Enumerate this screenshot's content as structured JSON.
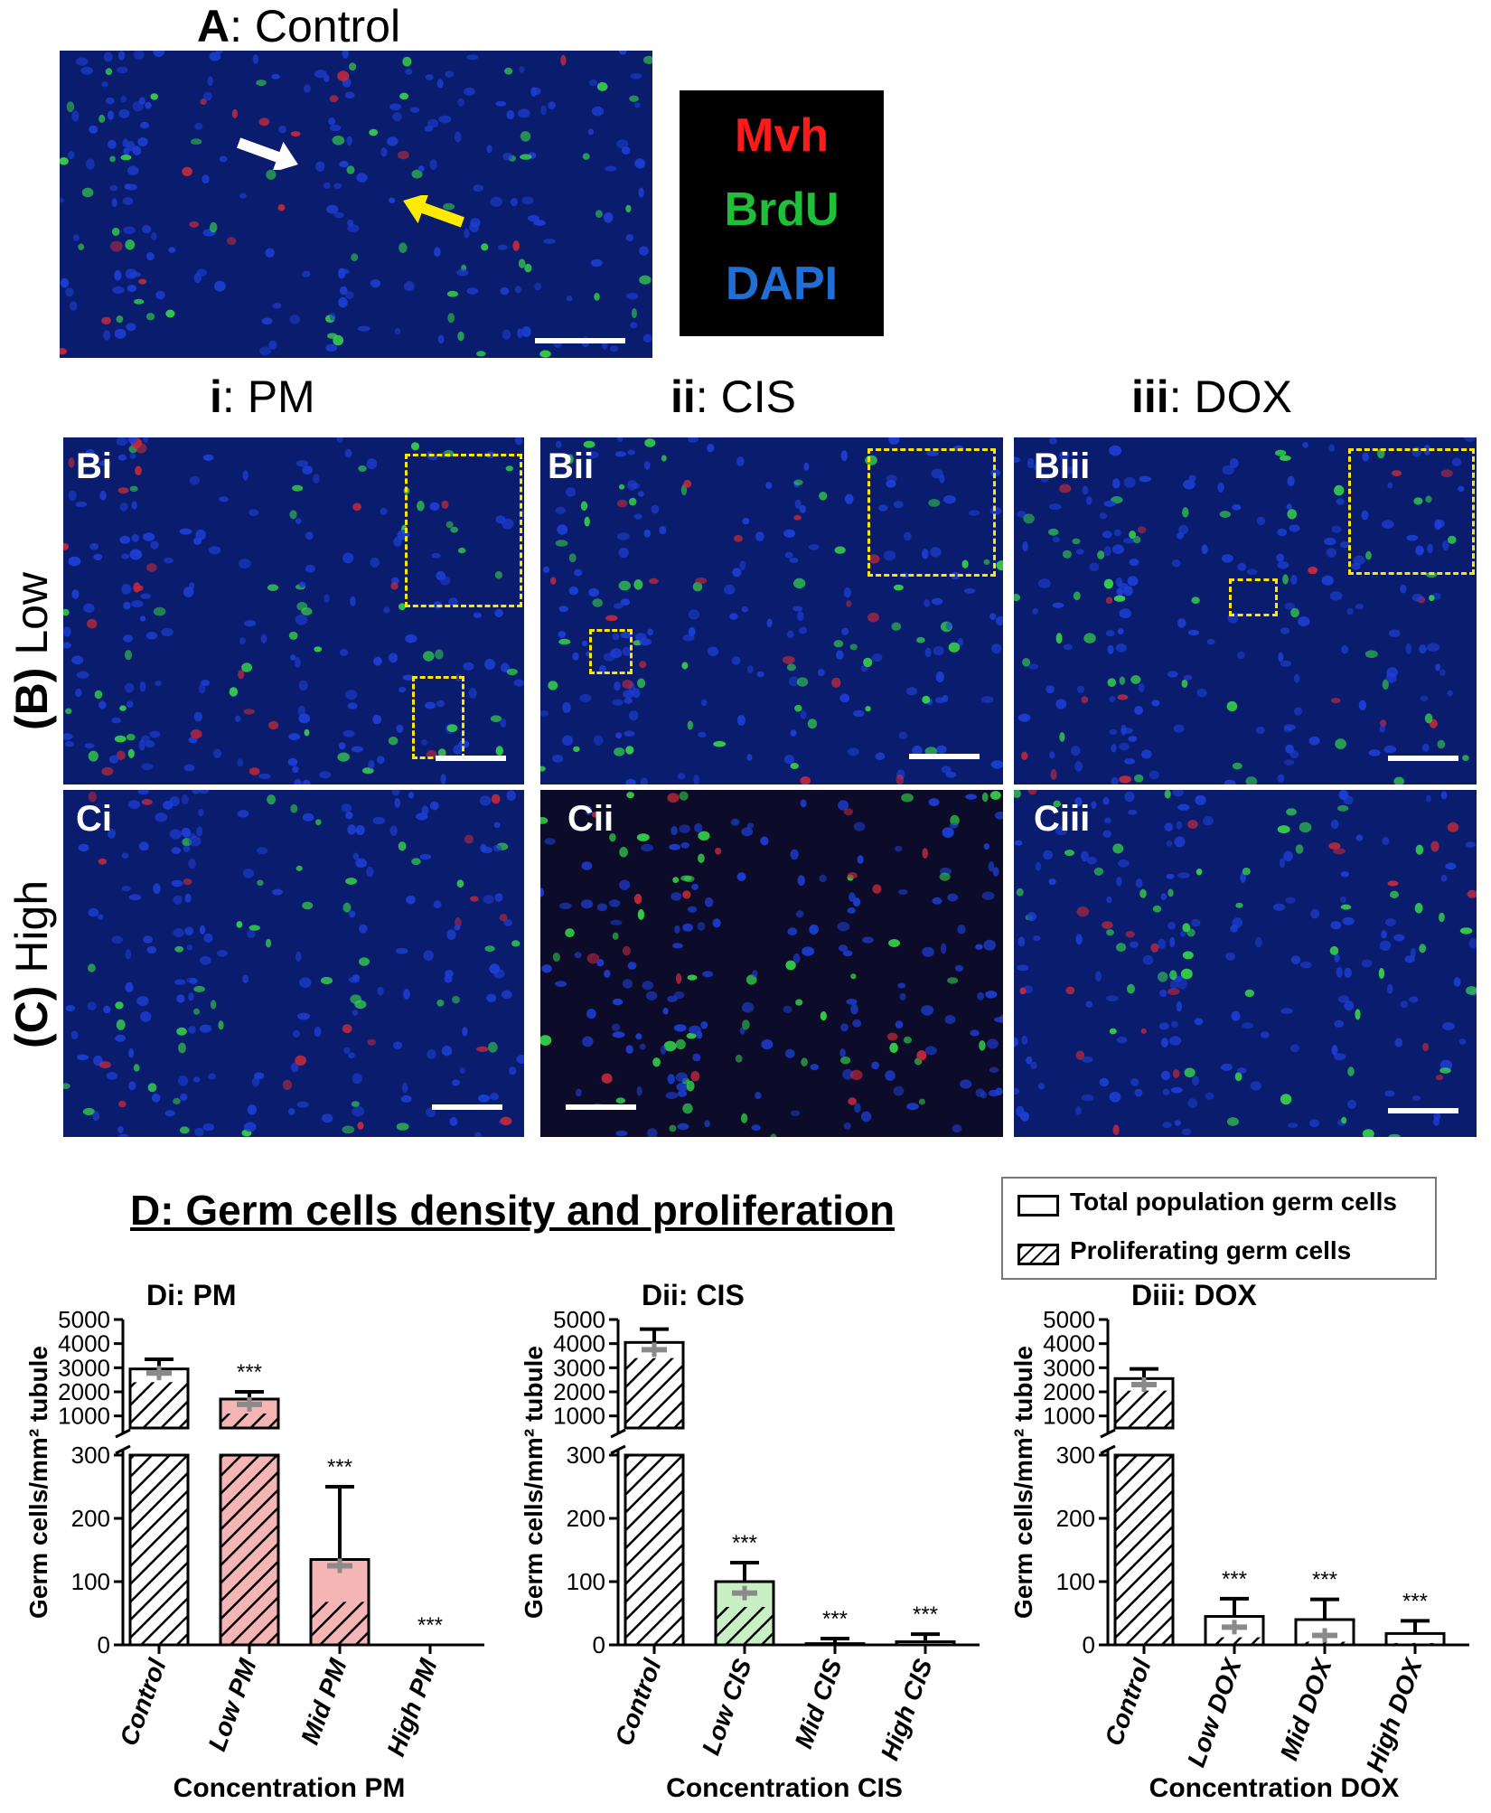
{
  "panel_a": {
    "title_letter": "A",
    "title_rest": ": Control"
  },
  "legend": {
    "mvh": {
      "text": "Mvh",
      "color": "#ff1a1a"
    },
    "brdu": {
      "text": "BrdU",
      "color": "#1fbf3a"
    },
    "dapi": {
      "text": "DAPI",
      "color": "#1f6fd6"
    }
  },
  "columns": [
    {
      "bold": "i",
      "rest": ": PM"
    },
    {
      "bold": "ii",
      "rest": ": CIS"
    },
    {
      "bold": "iii",
      "rest": ": DOX"
    }
  ],
  "rows": [
    {
      "bold": "(B)",
      "rest": " Low"
    },
    {
      "bold": "(C)",
      "rest": " High"
    }
  ],
  "micrographs": {
    "Bi": "Bi",
    "Bii": "Bii",
    "Biii": "Biii",
    "Ci": "Ci",
    "Cii": "Cii",
    "Ciii": "Ciii"
  },
  "section_d": {
    "title": "D: Germ cells density and proliferation",
    "key_total": "Total population germ cells",
    "key_prolif": "Proliferating germ cells"
  },
  "chart_data": [
    {
      "type": "bar",
      "title": "Di: PM",
      "xlabel": "Concentration PM",
      "ylabel": "Germ cells/mm² tubule",
      "categories": [
        "Control",
        "Low PM",
        "Mid PM",
        "High PM"
      ],
      "series": [
        {
          "name": "Total population germ cells",
          "values": [
            2950,
            1700,
            135,
            0
          ],
          "error": [
            400,
            300,
            115,
            0
          ]
        },
        {
          "name": "Proliferating germ cells",
          "values": [
            2400,
            1100,
            68,
            0
          ]
        }
      ],
      "grey_marker": [
        2780,
        1480,
        125,
        null
      ],
      "significance": [
        "",
        "***",
        "***",
        "***"
      ],
      "fill_color": "#f6b5b5",
      "y_axis_lower": {
        "ylim": [
          0,
          300
        ],
        "ticks": [
          0,
          100,
          200,
          300
        ]
      },
      "y_axis_upper": {
        "ylim": [
          500,
          5000
        ],
        "ticks": [
          1000,
          2000,
          3000,
          4000,
          5000
        ]
      }
    },
    {
      "type": "bar",
      "title": "Dii: CIS",
      "xlabel": "Concentration CIS",
      "ylabel": "Germ cells/mm² tubule",
      "categories": [
        "Control",
        "Low CIS",
        "Mid CIS",
        "High CIS"
      ],
      "series": [
        {
          "name": "Total population germ cells",
          "values": [
            4050,
            100,
            2,
            5
          ],
          "error": [
            550,
            30,
            8,
            12
          ]
        },
        {
          "name": "Proliferating germ cells",
          "values": [
            3400,
            60,
            0,
            0
          ]
        }
      ],
      "grey_marker": [
        3750,
        82,
        null,
        null
      ],
      "significance": [
        "",
        "***",
        "***",
        "***"
      ],
      "fill_color": "#c9f0c4",
      "y_axis_lower": {
        "ylim": [
          0,
          300
        ],
        "ticks": [
          0,
          100,
          200,
          300
        ]
      },
      "y_axis_upper": {
        "ylim": [
          500,
          5000
        ],
        "ticks": [
          1000,
          2000,
          3000,
          4000,
          5000
        ]
      }
    },
    {
      "type": "bar",
      "title": "Diii: DOX",
      "xlabel": "Concentration DOX",
      "ylabel": "Germ cells/mm² tubule",
      "categories": [
        "Control",
        "Low DOX",
        "Mid DOX",
        "High DOX"
      ],
      "series": [
        {
          "name": "Total population germ cells",
          "values": [
            2550,
            45,
            40,
            18
          ],
          "error": [
            400,
            28,
            32,
            20
          ]
        },
        {
          "name": "Proliferating germ cells",
          "values": [
            2050,
            12,
            5,
            3
          ]
        }
      ],
      "grey_marker": [
        2300,
        28,
        15,
        null
      ],
      "significance": [
        "",
        "***",
        "***",
        "***"
      ],
      "fill_color": "#ffffff",
      "y_axis_lower": {
        "ylim": [
          0,
          300
        ],
        "ticks": [
          0,
          100,
          200,
          300
        ]
      },
      "y_axis_upper": {
        "ylim": [
          500,
          5000
        ],
        "ticks": [
          1000,
          2000,
          3000,
          4000,
          5000
        ]
      }
    }
  ]
}
